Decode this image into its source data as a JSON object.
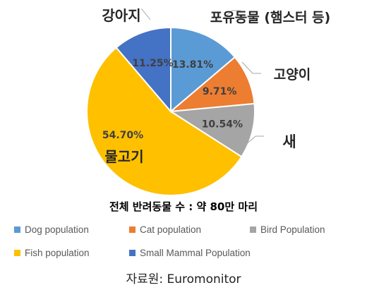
{
  "chart_data": {
    "type": "pie",
    "title": "",
    "subtitle": "전체 반려동물 수 : 약 80만 마리",
    "start_angle_deg": 0,
    "direction": "clockwise",
    "slices": [
      {
        "key": "dog",
        "legend": "Dog population",
        "category_label": "포유동물 (햄스터 등)",
        "value_label": "13.81%",
        "value": 13.81,
        "color": "#5B9BD5"
      },
      {
        "key": "cat",
        "legend": "Cat population",
        "category_label": "고양이",
        "value_label": "9.71%",
        "value": 9.71,
        "color": "#ED7D31"
      },
      {
        "key": "bird",
        "legend": "Bird Population",
        "category_label": "새",
        "value_label": "10.54%",
        "value": 10.54,
        "color": "#A5A5A5"
      },
      {
        "key": "fish",
        "legend": "Fish population",
        "category_label": "물고기",
        "value_label": "54.70%",
        "value": 54.7,
        "color": "#FFC000"
      },
      {
        "key": "mammal",
        "legend": "Small Mammal Population",
        "category_label": "강아지",
        "value_label": "11.25%",
        "value": 11.25,
        "color": "#4472C4"
      }
    ],
    "legend_position": "bottom"
  },
  "source": "자료원: Euromonitor"
}
